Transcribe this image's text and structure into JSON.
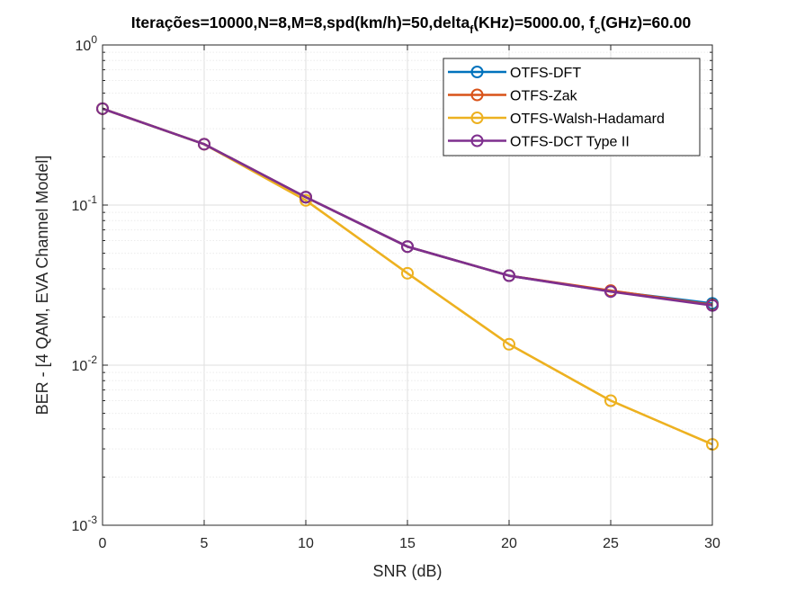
{
  "chart_data": {
    "type": "line",
    "title": {
      "main": "Iterações=10000,N=8,M=8,spd(km/h)=50,delta",
      "sub1": "f",
      "mid": "(KHz)=5000.00, f",
      "sub2": "c",
      "end": "(GHz)=60.00"
    },
    "xlabel": "SNR (dB)",
    "ylabel": "BER - [4 QAM, EVA Channel Model]",
    "xlim": [
      0,
      30
    ],
    "ylim": [
      0.001,
      1
    ],
    "yscale": "log",
    "grid": true,
    "minor_grid": true,
    "legend_location": "top-right",
    "x_ticks": [
      "0",
      "5",
      "10",
      "15",
      "20",
      "25",
      "30"
    ],
    "y_ticks": [
      {
        "base": "10",
        "exp": "0"
      },
      {
        "base": "10",
        "exp": "-1"
      },
      {
        "base": "10",
        "exp": "-2"
      },
      {
        "base": "10",
        "exp": "-3"
      }
    ],
    "x": [
      0,
      5,
      10,
      15,
      20,
      25,
      30
    ],
    "series": [
      {
        "name": "OTFS-DFT",
        "color": "#0072BD",
        "values": [
          0.4,
          0.24,
          0.112,
          0.055,
          0.0362,
          0.029,
          0.0243
        ]
      },
      {
        "name": "OTFS-Zak",
        "color": "#D95319",
        "values": [
          0.4,
          0.24,
          0.112,
          0.055,
          0.0362,
          0.0292,
          0.0238
        ]
      },
      {
        "name": "OTFS-Walsh-Hadamard",
        "color": "#EDB120",
        "values": [
          0.4,
          0.24,
          0.107,
          0.0375,
          0.0135,
          0.006,
          0.0032
        ]
      },
      {
        "name": "OTFS-DCT Type II",
        "color": "#7E2F8E",
        "values": [
          0.4,
          0.24,
          0.112,
          0.055,
          0.0362,
          0.0288,
          0.0236
        ]
      }
    ]
  }
}
